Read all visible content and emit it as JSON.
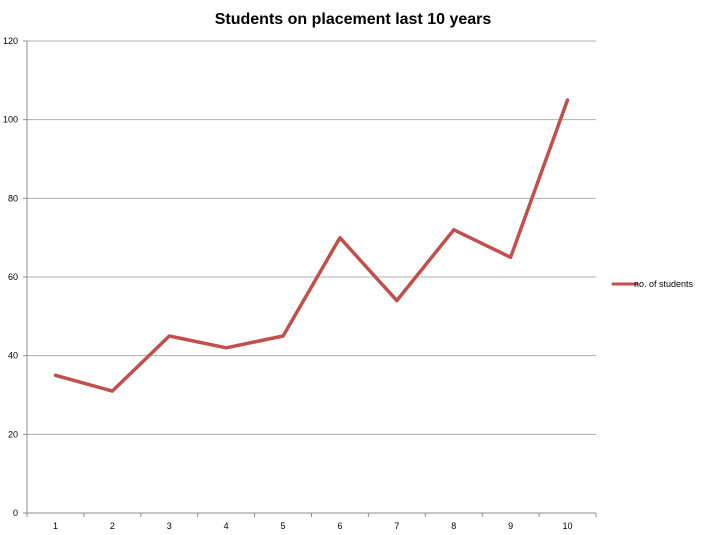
{
  "chart_data": {
    "type": "line",
    "title": "Students on placement last 10 years",
    "xlabel": "",
    "ylabel": "",
    "categories": [
      "1",
      "2",
      "3",
      "4",
      "5",
      "6",
      "7",
      "8",
      "9",
      "10"
    ],
    "series": [
      {
        "name": "no. of students",
        "values": [
          35,
          31,
          45,
          42,
          45,
          70,
          54,
          72,
          65,
          105
        ],
        "color": "#c0504d"
      }
    ],
    "ylim": [
      0,
      120
    ],
    "yticks": [
      0,
      20,
      40,
      60,
      80,
      100,
      120
    ],
    "grid": true,
    "legend_position": "right"
  }
}
